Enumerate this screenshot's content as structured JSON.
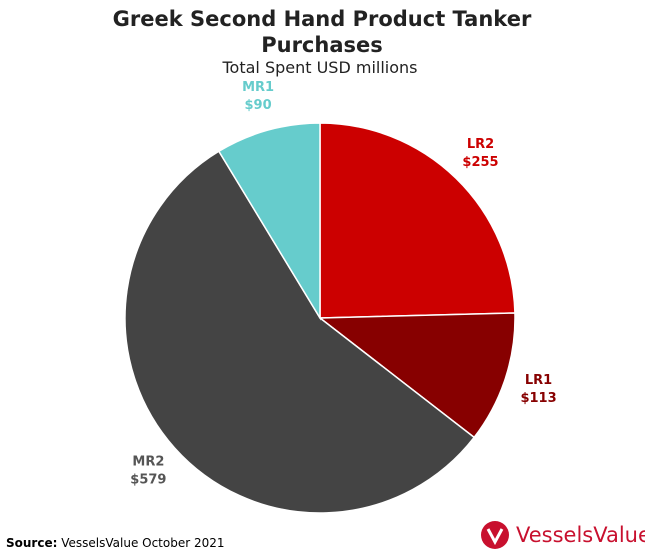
{
  "chart_data": {
    "type": "pie",
    "title": "Greek Second Hand Product Tanker Purchases",
    "subtitle": "Total Spent USD millions",
    "categories": [
      "LR2",
      "LR1",
      "MR2",
      "MR1"
    ],
    "values": [
      255,
      113,
      579,
      90
    ],
    "value_labels": [
      "$255",
      "$113",
      "$579",
      "$90"
    ],
    "colors": [
      "#cc0000",
      "#870000",
      "#444444",
      "#66cccc"
    ],
    "source_label": "Source:",
    "source": "VesselsValue October 2021",
    "logo": "VesselsValue"
  }
}
